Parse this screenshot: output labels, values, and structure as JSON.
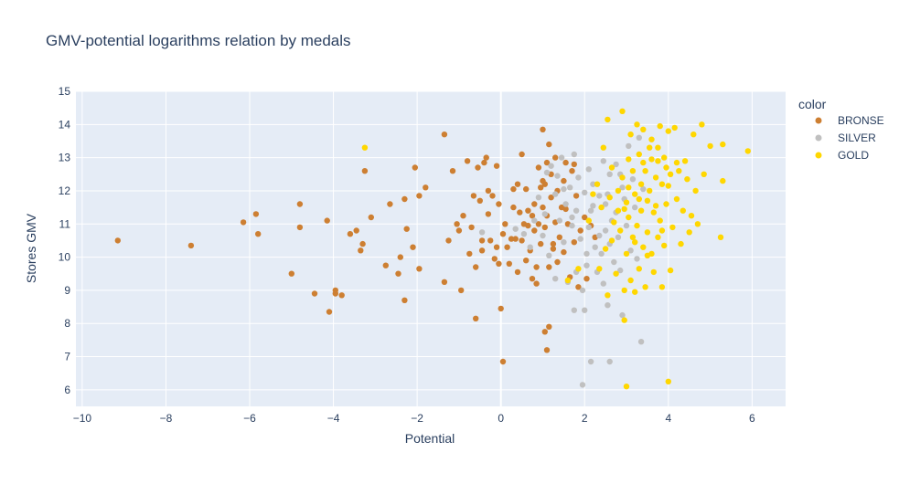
{
  "chart_data": {
    "type": "scatter",
    "title": "GMV-potential logarithms relation by medals",
    "xlabel": "Potential",
    "ylabel": "Stores GMV",
    "xlim": [
      -10.15,
      6.8
    ],
    "ylim": [
      5.5,
      15
    ],
    "xticks": [
      -10,
      -8,
      -6,
      -4,
      -2,
      0,
      2,
      4,
      6
    ],
    "yticks": [
      6,
      7,
      8,
      9,
      10,
      11,
      12,
      13,
      14,
      15
    ],
    "xtick_labels": [
      "−10",
      "−8",
      "−6",
      "−4",
      "−2",
      "0",
      "2",
      "4",
      "6"
    ],
    "ytick_labels": [
      "6",
      "7",
      "8",
      "9",
      "10",
      "11",
      "12",
      "13",
      "14",
      "15"
    ],
    "grid": true,
    "background": "#e5ecf6",
    "legend": {
      "title": "color",
      "placement": "right"
    },
    "series": [
      {
        "name": "BRONSE",
        "color": "#cd7f32",
        "points": [
          [
            -9.15,
            10.5
          ],
          [
            -7.4,
            10.35
          ],
          [
            -6.15,
            11.05
          ],
          [
            -5.85,
            11.3
          ],
          [
            -5.8,
            10.7
          ],
          [
            -5.0,
            9.5
          ],
          [
            -4.8,
            11.6
          ],
          [
            -4.8,
            10.9
          ],
          [
            -4.45,
            8.9
          ],
          [
            -4.15,
            11.1
          ],
          [
            -4.1,
            8.35
          ],
          [
            -3.95,
            9.0
          ],
          [
            -3.95,
            8.9
          ],
          [
            -3.8,
            8.85
          ],
          [
            -3.6,
            10.7
          ],
          [
            -3.45,
            10.8
          ],
          [
            -3.35,
            10.2
          ],
          [
            -3.3,
            10.4
          ],
          [
            -3.25,
            12.6
          ],
          [
            -3.1,
            11.2
          ],
          [
            -2.75,
            9.75
          ],
          [
            -2.65,
            11.6
          ],
          [
            -2.45,
            9.5
          ],
          [
            -2.4,
            10.0
          ],
          [
            -2.3,
            11.75
          ],
          [
            -2.3,
            8.7
          ],
          [
            -2.25,
            10.85
          ],
          [
            -2.1,
            10.3
          ],
          [
            -2.05,
            12.7
          ],
          [
            -1.95,
            11.85
          ],
          [
            -1.95,
            9.65
          ],
          [
            -1.8,
            12.1
          ],
          [
            -1.35,
            13.7
          ],
          [
            -1.35,
            9.25
          ],
          [
            -1.25,
            10.5
          ],
          [
            -1.15,
            12.6
          ],
          [
            -1.05,
            11.0
          ],
          [
            -1.0,
            10.8
          ],
          [
            -0.95,
            9.0
          ],
          [
            -0.9,
            11.25
          ],
          [
            -0.8,
            12.9
          ],
          [
            -0.75,
            10.1
          ],
          [
            -0.7,
            10.9
          ],
          [
            -0.65,
            11.85
          ],
          [
            -0.6,
            9.7
          ],
          [
            -0.6,
            8.15
          ],
          [
            -0.55,
            12.7
          ],
          [
            -0.5,
            11.7
          ],
          [
            -0.45,
            10.2
          ],
          [
            -0.4,
            12.85
          ],
          [
            -0.35,
            13.0
          ],
          [
            -0.3,
            12.0
          ],
          [
            -0.3,
            11.3
          ],
          [
            -0.25,
            10.5
          ],
          [
            -0.2,
            11.85
          ],
          [
            -0.15,
            9.95
          ],
          [
            -0.1,
            12.75
          ],
          [
            -0.1,
            10.3
          ],
          [
            -0.05,
            11.6
          ],
          [
            -0.05,
            9.8
          ],
          [
            0.0,
            8.45
          ],
          [
            0.05,
            10.7
          ],
          [
            0.05,
            6.85
          ],
          [
            0.1,
            11.0
          ],
          [
            0.15,
            10.3
          ],
          [
            0.2,
            9.8
          ],
          [
            0.3,
            11.5
          ],
          [
            0.35,
            10.55
          ],
          [
            0.4,
            12.2
          ],
          [
            0.4,
            9.55
          ],
          [
            0.45,
            11.35
          ],
          [
            0.5,
            13.1
          ],
          [
            0.5,
            10.5
          ],
          [
            0.55,
            11.0
          ],
          [
            0.6,
            12.05
          ],
          [
            0.6,
            9.9
          ],
          [
            0.65,
            11.4
          ],
          [
            0.7,
            10.2
          ],
          [
            0.75,
            11.25
          ],
          [
            0.75,
            9.35
          ],
          [
            0.8,
            11.6
          ],
          [
            0.8,
            10.8
          ],
          [
            0.85,
            9.2
          ],
          [
            0.85,
            9.7
          ],
          [
            0.9,
            12.7
          ],
          [
            0.9,
            11.0
          ],
          [
            0.95,
            10.4
          ],
          [
            0.95,
            12.1
          ],
          [
            1.0,
            11.5
          ],
          [
            1.0,
            12.3
          ],
          [
            1.0,
            13.85
          ],
          [
            1.05,
            10.9
          ],
          [
            1.05,
            7.75
          ],
          [
            1.1,
            12.85
          ],
          [
            1.1,
            11.25
          ],
          [
            1.15,
            9.7
          ],
          [
            1.15,
            7.9
          ],
          [
            1.1,
            7.2
          ],
          [
            1.2,
            12.5
          ],
          [
            1.2,
            11.8
          ],
          [
            1.25,
            10.4
          ],
          [
            1.3,
            13.0
          ],
          [
            1.3,
            11.05
          ],
          [
            1.35,
            12.0
          ],
          [
            1.35,
            9.85
          ],
          [
            1.4,
            10.6
          ],
          [
            1.45,
            11.5
          ],
          [
            1.5,
            12.3
          ],
          [
            1.5,
            10.15
          ],
          [
            1.55,
            12.85
          ],
          [
            1.6,
            11.0
          ],
          [
            1.65,
            9.4
          ],
          [
            1.7,
            12.6
          ],
          [
            1.75,
            10.45
          ],
          [
            1.8,
            11.85
          ],
          [
            1.85,
            9.1
          ],
          [
            1.9,
            10.8
          ],
          [
            2.0,
            11.2
          ],
          [
            2.05,
            9.35
          ],
          [
            2.15,
            10.95
          ],
          [
            1.15,
            13.4
          ],
          [
            1.05,
            12.2
          ],
          [
            0.3,
            12.05
          ],
          [
            -0.45,
            10.5
          ],
          [
            0.25,
            10.55
          ],
          [
            0.65,
            10.95
          ],
          [
            1.25,
            10.25
          ],
          [
            1.55,
            11.45
          ],
          [
            1.75,
            12.8
          ],
          [
            2.25,
            10.6
          ]
        ]
      },
      {
        "name": "SILVER",
        "color": "#c0c0c0",
        "points": [
          [
            -0.45,
            10.75
          ],
          [
            0.35,
            10.85
          ],
          [
            0.55,
            10.7
          ],
          [
            0.7,
            10.3
          ],
          [
            0.8,
            11.1
          ],
          [
            0.9,
            11.8
          ],
          [
            1.0,
            10.65
          ],
          [
            1.05,
            11.3
          ],
          [
            1.1,
            12.55
          ],
          [
            1.15,
            10.05
          ],
          [
            1.2,
            12.75
          ],
          [
            1.3,
            11.9
          ],
          [
            1.35,
            12.45
          ],
          [
            1.4,
            11.1
          ],
          [
            1.45,
            13.0
          ],
          [
            1.5,
            10.45
          ],
          [
            1.55,
            11.6
          ],
          [
            1.6,
            9.25
          ],
          [
            1.65,
            12.1
          ],
          [
            1.7,
            10.95
          ],
          [
            1.75,
            13.1
          ],
          [
            1.75,
            8.4
          ],
          [
            1.8,
            11.4
          ],
          [
            1.8,
            9.55
          ],
          [
            1.85,
            12.4
          ],
          [
            1.9,
            10.55
          ],
          [
            1.95,
            6.15
          ],
          [
            2.0,
            11.95
          ],
          [
            2.0,
            8.4
          ],
          [
            2.05,
            9.75
          ],
          [
            2.1,
            12.65
          ],
          [
            2.1,
            10.9
          ],
          [
            2.15,
            11.4
          ],
          [
            2.15,
            6.85
          ],
          [
            2.2,
            12.2
          ],
          [
            2.25,
            10.3
          ],
          [
            2.3,
            9.55
          ],
          [
            2.35,
            11.85
          ],
          [
            2.4,
            10.1
          ],
          [
            2.45,
            12.9
          ],
          [
            2.45,
            9.2
          ],
          [
            2.5,
            11.6
          ],
          [
            2.5,
            10.8
          ],
          [
            2.55,
            8.55
          ],
          [
            2.6,
            12.5
          ],
          [
            2.6,
            10.4
          ],
          [
            2.6,
            6.85
          ],
          [
            2.65,
            11.1
          ],
          [
            2.7,
            9.85
          ],
          [
            2.75,
            12.8
          ],
          [
            2.75,
            11.35
          ],
          [
            2.8,
            10.6
          ],
          [
            2.85,
            9.6
          ],
          [
            2.9,
            12.1
          ],
          [
            2.9,
            8.25
          ],
          [
            2.95,
            11.75
          ],
          [
            3.0,
            10.95
          ],
          [
            3.05,
            13.35
          ],
          [
            3.1,
            10.2
          ],
          [
            3.15,
            12.35
          ],
          [
            3.2,
            11.5
          ],
          [
            3.25,
            9.95
          ],
          [
            3.3,
            13.6
          ],
          [
            3.35,
            7.45
          ],
          [
            3.4,
            12.05
          ],
          [
            1.5,
            12.05
          ],
          [
            1.7,
            11.2
          ],
          [
            2.05,
            10.1
          ],
          [
            2.2,
            11.55
          ],
          [
            2.35,
            10.65
          ],
          [
            2.55,
            11.9
          ],
          [
            2.85,
            12.5
          ],
          [
            1.3,
            9.35
          ],
          [
            1.95,
            9.0
          ]
        ]
      },
      {
        "name": "GOLD",
        "color": "#ffd700",
        "points": [
          [
            -3.25,
            13.3
          ],
          [
            1.6,
            9.3
          ],
          [
            1.85,
            9.65
          ],
          [
            2.1,
            11.1
          ],
          [
            2.2,
            11.9
          ],
          [
            2.3,
            12.2
          ],
          [
            2.35,
            9.65
          ],
          [
            2.4,
            11.5
          ],
          [
            2.45,
            13.3
          ],
          [
            2.5,
            10.25
          ],
          [
            2.55,
            14.15
          ],
          [
            2.55,
            8.85
          ],
          [
            2.6,
            11.8
          ],
          [
            2.65,
            12.7
          ],
          [
            2.65,
            10.5
          ],
          [
            2.7,
            11.05
          ],
          [
            2.75,
            9.5
          ],
          [
            2.8,
            12.0
          ],
          [
            2.8,
            11.4
          ],
          [
            2.85,
            10.8
          ],
          [
            2.9,
            14.4
          ],
          [
            2.9,
            12.4
          ],
          [
            2.95,
            9.0
          ],
          [
            2.95,
            8.1
          ],
          [
            3.0,
            11.65
          ],
          [
            3.0,
            10.1
          ],
          [
            3.0,
            6.1
          ],
          [
            3.05,
            12.95
          ],
          [
            3.05,
            11.2
          ],
          [
            3.1,
            9.3
          ],
          [
            3.1,
            13.7
          ],
          [
            3.15,
            10.6
          ],
          [
            3.15,
            12.6
          ],
          [
            3.2,
            11.9
          ],
          [
            3.2,
            8.95
          ],
          [
            3.25,
            14.0
          ],
          [
            3.25,
            10.95
          ],
          [
            3.3,
            13.1
          ],
          [
            3.3,
            9.65
          ],
          [
            3.35,
            12.2
          ],
          [
            3.35,
            11.4
          ],
          [
            3.4,
            10.3
          ],
          [
            3.4,
            13.85
          ],
          [
            3.45,
            12.6
          ],
          [
            3.45,
            9.1
          ],
          [
            3.5,
            11.7
          ],
          [
            3.5,
            10.75
          ],
          [
            3.55,
            13.3
          ],
          [
            3.55,
            12.0
          ],
          [
            3.6,
            10.1
          ],
          [
            3.6,
            13.55
          ],
          [
            3.65,
            11.35
          ],
          [
            3.65,
            9.55
          ],
          [
            3.7,
            12.4
          ],
          [
            3.75,
            12.9
          ],
          [
            3.75,
            10.6
          ],
          [
            3.8,
            13.95
          ],
          [
            3.8,
            11.1
          ],
          [
            3.85,
            12.2
          ],
          [
            3.85,
            9.1
          ],
          [
            3.9,
            13.0
          ],
          [
            3.9,
            10.35
          ],
          [
            3.95,
            12.7
          ],
          [
            3.95,
            11.6
          ],
          [
            4.0,
            13.8
          ],
          [
            4.0,
            6.25
          ],
          [
            4.05,
            9.6
          ],
          [
            4.05,
            12.5
          ],
          [
            4.1,
            10.9
          ],
          [
            4.15,
            13.9
          ],
          [
            4.2,
            11.75
          ],
          [
            4.25,
            12.6
          ],
          [
            4.3,
            10.4
          ],
          [
            4.35,
            11.4
          ],
          [
            4.4,
            12.9
          ],
          [
            4.45,
            12.35
          ],
          [
            4.5,
            10.75
          ],
          [
            4.55,
            11.25
          ],
          [
            4.6,
            13.7
          ],
          [
            4.65,
            12.0
          ],
          [
            4.7,
            11.0
          ],
          [
            4.8,
            14.0
          ],
          [
            4.85,
            12.5
          ],
          [
            5.0,
            13.35
          ],
          [
            5.25,
            10.6
          ],
          [
            5.3,
            12.3
          ],
          [
            5.3,
            13.4
          ],
          [
            5.9,
            13.2
          ],
          [
            3.5,
            10.05
          ],
          [
            3.6,
            12.95
          ],
          [
            3.7,
            11.55
          ],
          [
            3.85,
            10.8
          ],
          [
            4.0,
            12.15
          ],
          [
            3.3,
            11.75
          ],
          [
            3.2,
            10.45
          ],
          [
            3.05,
            12.1
          ],
          [
            2.95,
            11.45
          ],
          [
            3.4,
            12.85
          ],
          [
            3.75,
            13.3
          ],
          [
            4.2,
            12.85
          ]
        ]
      }
    ]
  }
}
